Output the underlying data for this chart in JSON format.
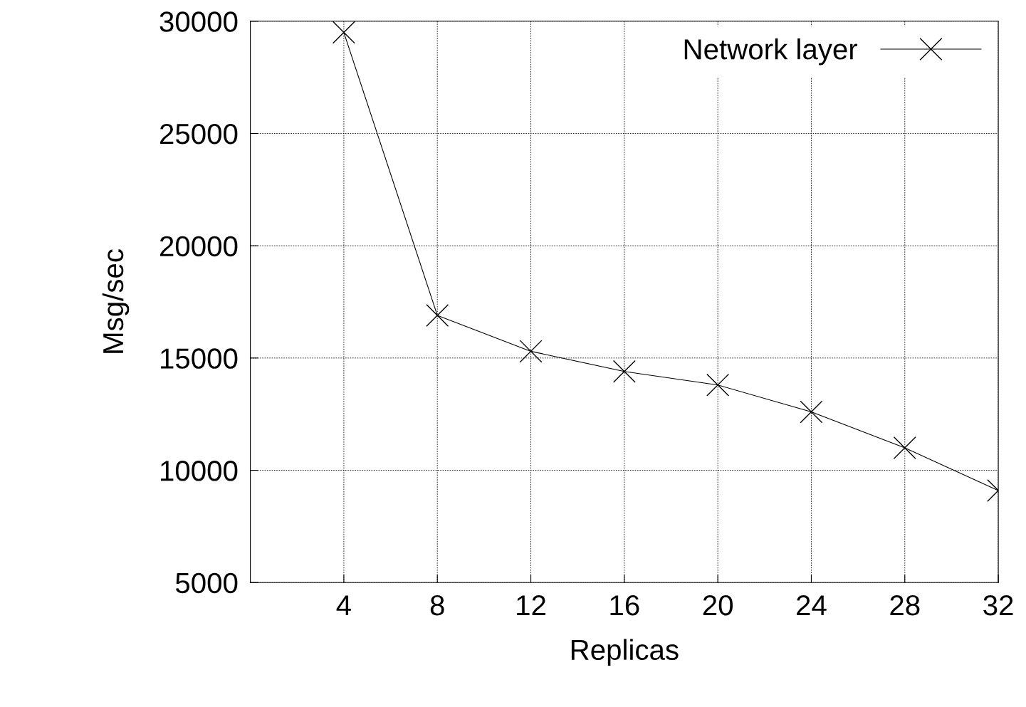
{
  "chart_data": {
    "type": "line",
    "xlabel": "Replicas",
    "ylabel": "Msg/sec",
    "x": [
      4,
      8,
      12,
      16,
      20,
      24,
      28,
      32
    ],
    "series": [
      {
        "name": "Network layer",
        "color": "#000000",
        "values": [
          29500,
          16900,
          15300,
          14400,
          13800,
          12600,
          11000,
          9100
        ]
      }
    ],
    "xlim": [
      0,
      32
    ],
    "xticks": [
      4,
      8,
      12,
      16,
      20,
      24,
      28,
      32
    ],
    "ylim": [
      5000,
      30000
    ],
    "yticks": [
      5000,
      10000,
      15000,
      20000,
      25000,
      30000
    ],
    "grid": true,
    "legend": "top right",
    "marker": "cross",
    "line_style": "solid"
  }
}
